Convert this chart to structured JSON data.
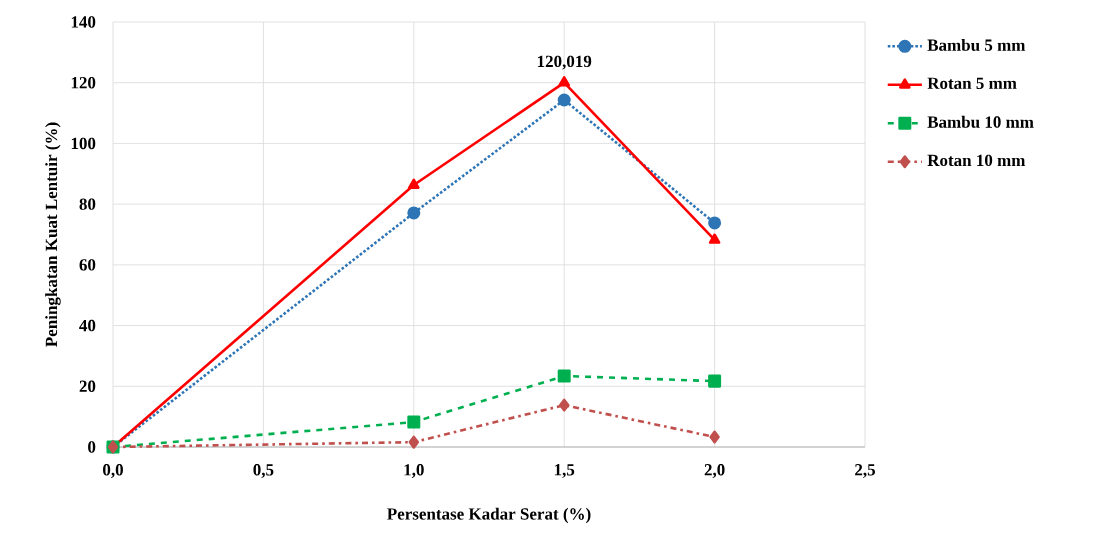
{
  "chart_data": {
    "type": "line",
    "xlabel": "Persentase Kadar Serat (%)",
    "ylabel": "Peningkatan Kuat Lentuir (%)",
    "x": [
      0,
      1,
      1.5,
      2
    ],
    "series": [
      {
        "name": "Bambu 5 mm",
        "color": "#2e75b6",
        "values": [
          0,
          77.1,
          114.3,
          73.8
        ],
        "marker": "circle",
        "line_style": "dotted"
      },
      {
        "name": "Rotan 5 mm",
        "color": "#ff0000",
        "values": [
          0,
          86.3,
          120.019,
          68.2
        ],
        "marker": "triangle",
        "line_style": "solid"
      },
      {
        "name": "Bambu 10 mm",
        "color": "#00b050",
        "values": [
          0,
          8.2,
          23.4,
          21.7
        ],
        "marker": "square",
        "line_style": "dashed"
      },
      {
        "name": "Rotan 10 mm",
        "color": "#c0504d",
        "values": [
          0,
          1.6,
          13.8,
          3.3
        ],
        "marker": "diamond",
        "line_style": "dashdot"
      }
    ],
    "xlim": [
      0,
      2.5
    ],
    "ylim": [
      0,
      140
    ],
    "xticks": [
      {
        "value": 0,
        "label": "0,0"
      },
      {
        "value": 0.5,
        "label": "0,5"
      },
      {
        "value": 1,
        "label": "1,0"
      },
      {
        "value": 1.5,
        "label": "1,5"
      },
      {
        "value": 2,
        "label": "2,0"
      },
      {
        "value": 2.5,
        "label": "2,5"
      }
    ],
    "yticks": [
      0,
      20,
      40,
      60,
      80,
      100,
      120,
      140
    ],
    "annotations": [
      {
        "text": "120,019",
        "x": 1.5,
        "y": 120.019
      }
    ],
    "grid": true,
    "legend": "right"
  }
}
